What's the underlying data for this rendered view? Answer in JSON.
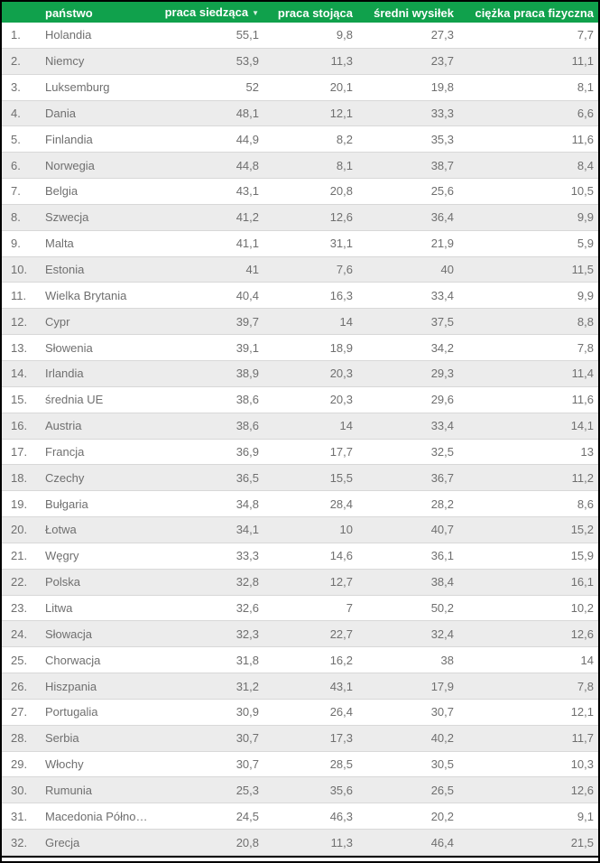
{
  "header": {
    "rank_label": "",
    "sort_icon": "▼",
    "sorted_column": "praca siedząca",
    "sort_direction": "desc"
  },
  "colors": {
    "header_bg": "#10a14c",
    "header_text": "#ffffff",
    "row_alt_bg": "#ececec",
    "row_border": "#d8d8d8",
    "row_text": "#6f6f6f",
    "frame_border": "#000000"
  },
  "chart_data": {
    "type": "table",
    "columns": [
      "państwo",
      "praca siedząca",
      "praca stojąca",
      "średni wysiłek",
      "ciężka praca fizyczna"
    ],
    "sort": {
      "column": "praca siedząca",
      "direction": "desc"
    },
    "rows": [
      {
        "rank": "1.",
        "country": "Holandia",
        "values": [
          55.1,
          9.8,
          27.3,
          7.7
        ]
      },
      {
        "rank": "2.",
        "country": "Niemcy",
        "values": [
          53.9,
          11.3,
          23.7,
          11.1
        ]
      },
      {
        "rank": "3.",
        "country": "Luksemburg",
        "values": [
          52,
          20.1,
          19.8,
          8.1
        ]
      },
      {
        "rank": "4.",
        "country": "Dania",
        "values": [
          48.1,
          12.1,
          33.3,
          6.6
        ]
      },
      {
        "rank": "5.",
        "country": "Finlandia",
        "values": [
          44.9,
          8.2,
          35.3,
          11.6
        ]
      },
      {
        "rank": "6.",
        "country": "Norwegia",
        "values": [
          44.8,
          8.1,
          38.7,
          8.4
        ]
      },
      {
        "rank": "7.",
        "country": "Belgia",
        "values": [
          43.1,
          20.8,
          25.6,
          10.5
        ]
      },
      {
        "rank": "8.",
        "country": "Szwecja",
        "values": [
          41.2,
          12.6,
          36.4,
          9.9
        ]
      },
      {
        "rank": "9.",
        "country": "Malta",
        "values": [
          41.1,
          31.1,
          21.9,
          5.9
        ]
      },
      {
        "rank": "10.",
        "country": "Estonia",
        "values": [
          41,
          7.6,
          40,
          11.5
        ]
      },
      {
        "rank": "11.",
        "country": "Wielka Brytania",
        "values": [
          40.4,
          16.3,
          33.4,
          9.9
        ]
      },
      {
        "rank": "12.",
        "country": "Cypr",
        "values": [
          39.7,
          14,
          37.5,
          8.8
        ]
      },
      {
        "rank": "13.",
        "country": "Słowenia",
        "values": [
          39.1,
          18.9,
          34.2,
          7.8
        ]
      },
      {
        "rank": "14.",
        "country": "Irlandia",
        "values": [
          38.9,
          20.3,
          29.3,
          11.4
        ]
      },
      {
        "rank": "15.",
        "country": "średnia UE",
        "values": [
          38.6,
          20.3,
          29.6,
          11.6
        ]
      },
      {
        "rank": "16.",
        "country": "Austria",
        "values": [
          38.6,
          14,
          33.4,
          14.1
        ]
      },
      {
        "rank": "17.",
        "country": "Francja",
        "values": [
          36.9,
          17.7,
          32.5,
          13
        ]
      },
      {
        "rank": "18.",
        "country": "Czechy",
        "values": [
          36.5,
          15.5,
          36.7,
          11.2
        ]
      },
      {
        "rank": "19.",
        "country": "Bułgaria",
        "values": [
          34.8,
          28.4,
          28.2,
          8.6
        ]
      },
      {
        "rank": "20.",
        "country": "Łotwa",
        "values": [
          34.1,
          10,
          40.7,
          15.2
        ]
      },
      {
        "rank": "21.",
        "country": "Węgry",
        "values": [
          33.3,
          14.6,
          36.1,
          15.9
        ]
      },
      {
        "rank": "22.",
        "country": "Polska",
        "values": [
          32.8,
          12.7,
          38.4,
          16.1
        ]
      },
      {
        "rank": "23.",
        "country": "Litwa",
        "values": [
          32.6,
          7,
          50.2,
          10.2
        ]
      },
      {
        "rank": "24.",
        "country": "Słowacja",
        "values": [
          32.3,
          22.7,
          32.4,
          12.6
        ]
      },
      {
        "rank": "25.",
        "country": "Chorwacja",
        "values": [
          31.8,
          16.2,
          38,
          14
        ]
      },
      {
        "rank": "26.",
        "country": "Hiszpania",
        "values": [
          31.2,
          43.1,
          17.9,
          7.8
        ]
      },
      {
        "rank": "27.",
        "country": "Portugalia",
        "values": [
          30.9,
          26.4,
          30.7,
          12.1
        ]
      },
      {
        "rank": "28.",
        "country": "Serbia",
        "values": [
          30.7,
          17.3,
          40.2,
          11.7
        ]
      },
      {
        "rank": "29.",
        "country": "Włochy",
        "values": [
          30.7,
          28.5,
          30.5,
          10.3
        ]
      },
      {
        "rank": "30.",
        "country": "Rumunia",
        "values": [
          25.3,
          35.6,
          26.5,
          12.6
        ]
      },
      {
        "rank": "31.",
        "country": "Macedonia Półno…",
        "values": [
          24.5,
          46.3,
          20.2,
          9.1
        ]
      },
      {
        "rank": "32.",
        "country": "Grecja",
        "values": [
          20.8,
          11.3,
          46.4,
          21.5
        ]
      }
    ]
  }
}
